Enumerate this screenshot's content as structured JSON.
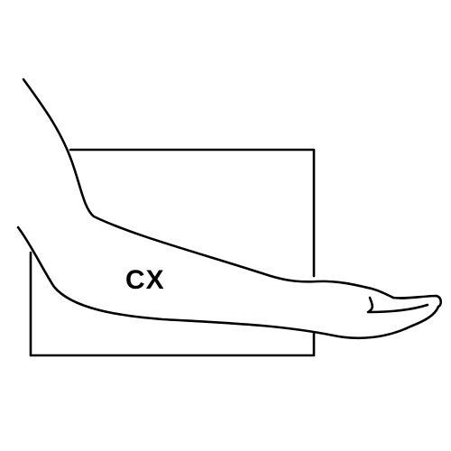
{
  "diagram": {
    "region_label": "CX",
    "colors": {
      "stroke": "#000000",
      "background": "#ffffff"
    }
  }
}
